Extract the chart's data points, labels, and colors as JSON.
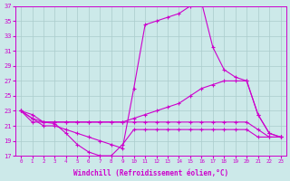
{
  "xlabel": "Windchill (Refroidissement éolien,°C)",
  "xlim": [
    -0.5,
    23.5
  ],
  "ylim": [
    17,
    37
  ],
  "xticks": [
    0,
    1,
    2,
    3,
    4,
    5,
    6,
    7,
    8,
    9,
    10,
    11,
    12,
    13,
    14,
    15,
    16,
    17,
    18,
    19,
    20,
    21,
    22,
    23
  ],
  "yticks": [
    17,
    19,
    21,
    23,
    25,
    27,
    29,
    31,
    33,
    35,
    37
  ],
  "bg_color": "#cce9e9",
  "line_color": "#cc00cc",
  "grid_color": "#aacccc",
  "lines": [
    {
      "x": [
        0,
        1,
        2,
        3,
        4,
        5,
        6,
        7,
        8,
        9,
        10,
        11,
        12,
        13,
        14,
        15,
        16,
        17,
        18,
        19,
        20,
        21,
        22,
        23
      ],
      "y": [
        23,
        22,
        21,
        21,
        20.5,
        20,
        19.5,
        19,
        18.5,
        18,
        26,
        34.5,
        35,
        35.5,
        36,
        37,
        37.5,
        31.5,
        28.5,
        27.5,
        27,
        22.5,
        20,
        19.5
      ]
    },
    {
      "x": [
        0,
        1,
        2,
        3,
        4,
        5,
        6,
        7,
        8,
        9,
        10,
        11,
        12,
        13,
        14,
        15,
        16,
        17,
        18,
        19,
        20,
        21,
        22,
        23
      ],
      "y": [
        23,
        21.5,
        21.5,
        21.5,
        21.5,
        21.5,
        21.5,
        21.5,
        21.5,
        21.5,
        22,
        22.5,
        23,
        23.5,
        24,
        25,
        26,
        26.5,
        27,
        27,
        27,
        22.5,
        20,
        19.5
      ]
    },
    {
      "x": [
        0,
        1,
        2,
        3,
        4,
        5,
        6,
        7,
        8,
        9,
        10,
        11,
        12,
        13,
        14,
        15,
        16,
        17,
        18,
        19,
        20,
        21,
        22,
        23
      ],
      "y": [
        23,
        22,
        21.5,
        21.5,
        21.5,
        21.5,
        21.5,
        21.5,
        21.5,
        21.5,
        21.5,
        21.5,
        21.5,
        21.5,
        21.5,
        21.5,
        21.5,
        21.5,
        21.5,
        21.5,
        21.5,
        20.5,
        19.5,
        19.5
      ]
    },
    {
      "x": [
        0,
        1,
        2,
        3,
        4,
        5,
        6,
        7,
        8,
        9,
        10,
        11,
        12,
        13,
        14,
        15,
        16,
        17,
        18,
        19,
        20,
        21,
        22,
        23
      ],
      "y": [
        23,
        22.5,
        21.5,
        21.3,
        20,
        18.5,
        17.5,
        17,
        17,
        18.5,
        20.5,
        20.5,
        20.5,
        20.5,
        20.5,
        20.5,
        20.5,
        20.5,
        20.5,
        20.5,
        20.5,
        19.5,
        19.5,
        19.5
      ]
    }
  ]
}
